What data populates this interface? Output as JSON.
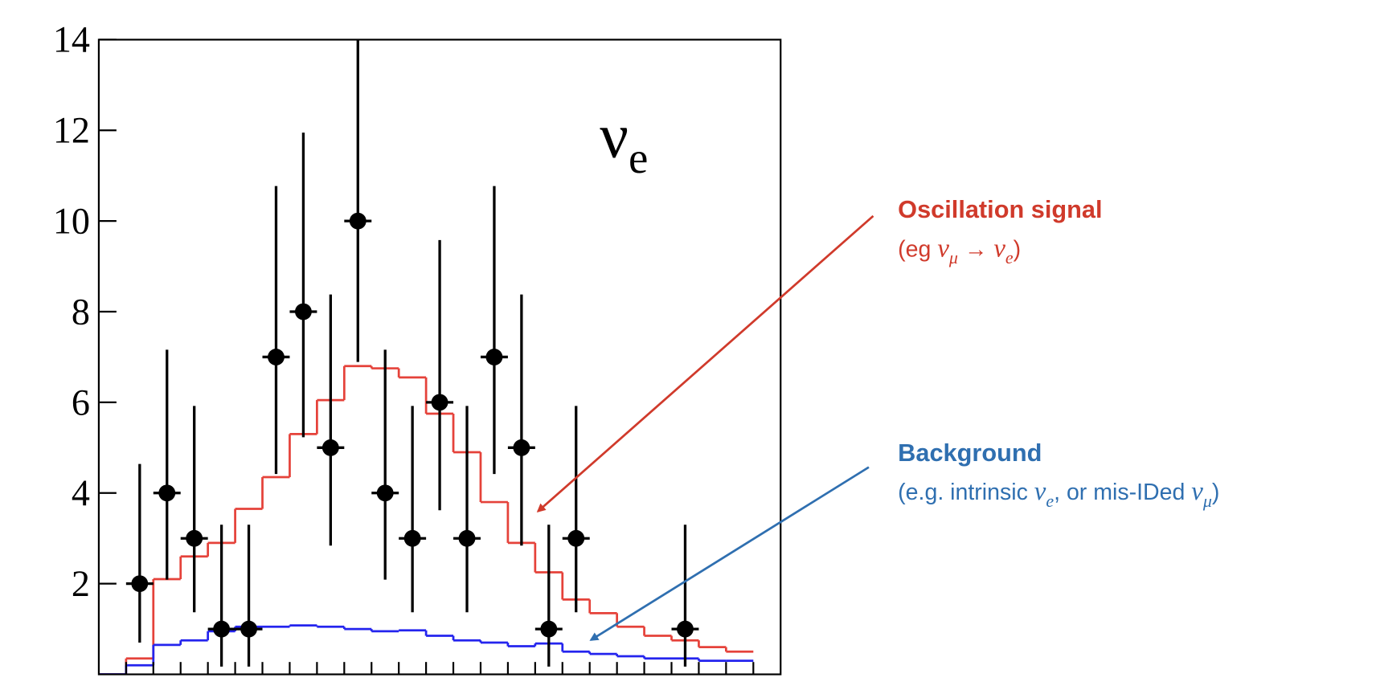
{
  "chart_data": {
    "type": "histogram",
    "xlim": [
      0,
      25
    ],
    "xticks": [
      1,
      2,
      3,
      4,
      5,
      6,
      7,
      8,
      9,
      10,
      11,
      12,
      13,
      14,
      15,
      16,
      17,
      18,
      19,
      20,
      21,
      22,
      23,
      24
    ],
    "ylim": [
      0,
      14
    ],
    "yticks": [
      2,
      4,
      6,
      8,
      10,
      12,
      14
    ],
    "bins": [
      0,
      1,
      2,
      3,
      4,
      5,
      6,
      7,
      8,
      9,
      10,
      11,
      12,
      13,
      14,
      15,
      16,
      17,
      18,
      19,
      20,
      21,
      22,
      23,
      24
    ],
    "series": [
      {
        "color": "#e5423a",
        "values": [
          0,
          0.35,
          2.1,
          2.6,
          2.9,
          3.65,
          4.35,
          5.3,
          6.05,
          6.8,
          6.75,
          6.55,
          5.75,
          4.9,
          3.8,
          2.9,
          2.25,
          1.65,
          1.35,
          1.05,
          0.85,
          0.75,
          0.6,
          0.5
        ]
      },
      {
        "color": "#2424ee",
        "values": [
          0,
          0.2,
          0.65,
          0.75,
          0.95,
          1.05,
          1.05,
          1.08,
          1.05,
          1.0,
          0.95,
          0.97,
          0.85,
          0.75,
          0.7,
          0.62,
          0.68,
          0.5,
          0.45,
          0.4,
          0.35,
          0.35,
          0.3,
          0.3
        ]
      }
    ],
    "points": {
      "color": "#000000",
      "x": [
        1.5,
        2.5,
        3.5,
        4.5,
        5.5,
        6.5,
        7.5,
        8.5,
        9.5,
        10.5,
        11.5,
        12.5,
        13.5,
        14.5,
        15.5,
        16.5,
        17.5,
        21.5
      ],
      "values": [
        2,
        4,
        3,
        1,
        1,
        7,
        8,
        5,
        10,
        4,
        3,
        6,
        3,
        7,
        5,
        1,
        3,
        1
      ],
      "error_low": [
        1.3,
        1.91,
        1.63,
        0.83,
        0.83,
        2.58,
        2.77,
        2.16,
        3.11,
        1.91,
        1.63,
        2.38,
        1.63,
        2.58,
        2.16,
        0.83,
        1.63,
        0.83
      ],
      "error_high": [
        2.64,
        3.16,
        2.92,
        2.3,
        2.3,
        3.77,
        3.95,
        3.38,
        4.27,
        3.16,
        2.92,
        3.58,
        2.92,
        3.77,
        3.38,
        2.3,
        2.92,
        2.3
      ]
    },
    "plot_label": [
      "ν",
      "e"
    ],
    "annotations": [
      {
        "text": "Oscillation signal",
        "color": "#d03a2b",
        "detail": [
          "(eg ",
          "ν",
          "μ",
          " → ",
          "ν",
          "e",
          ")"
        ]
      },
      {
        "text": "Background",
        "color": "#2f6fb0",
        "detail": [
          "(e.g. intrinsic ",
          "ν",
          "e",
          ", or mis-IDed ",
          "ν",
          "μ",
          ")"
        ]
      }
    ]
  }
}
